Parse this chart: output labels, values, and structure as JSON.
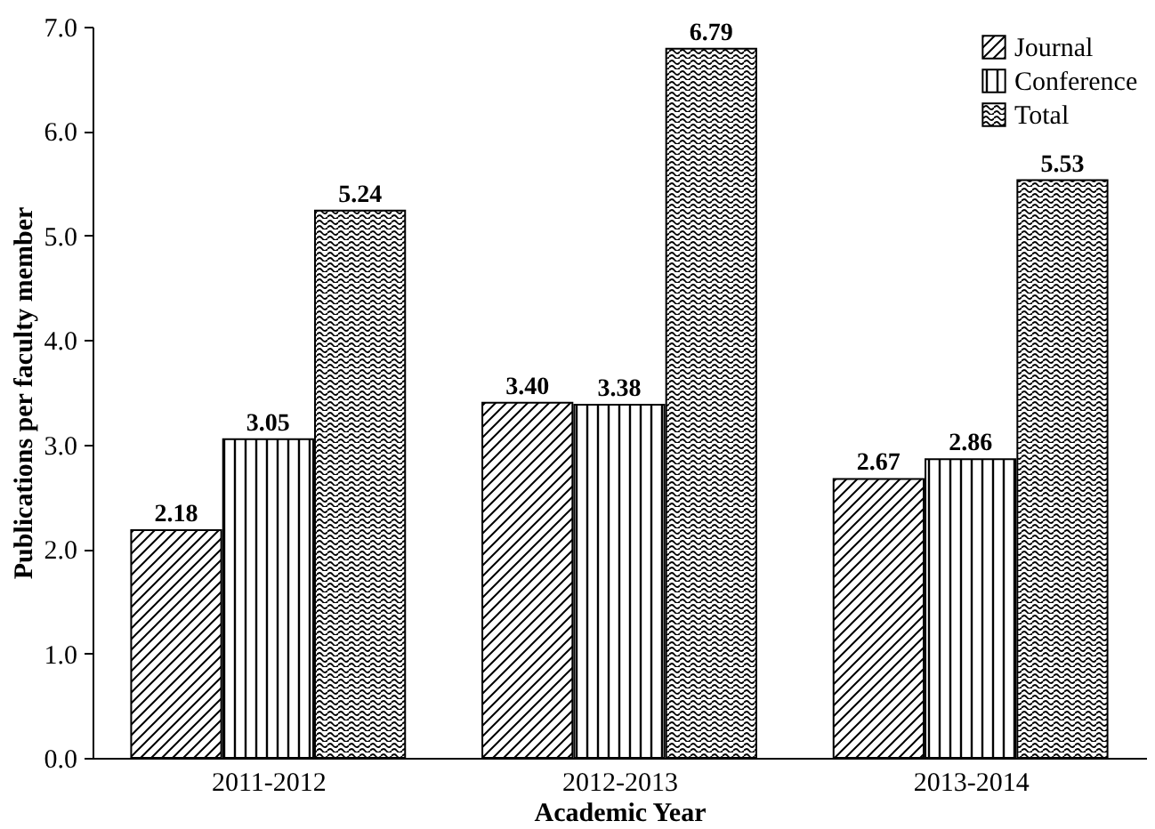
{
  "chart_data": {
    "type": "bar",
    "xlabel": "Academic Year",
    "ylabel": "Publications per faculty member",
    "categories": [
      "2011-2012",
      "2012-2013",
      "2013-2014"
    ],
    "series": [
      {
        "name": "Journal",
        "color": "#000000",
        "values": [
          2.18,
          3.4,
          2.67
        ],
        "value_labels": [
          "2.18",
          "3.40",
          "2.67"
        ]
      },
      {
        "name": "Conference",
        "color": "#000000",
        "values": [
          3.05,
          3.38,
          2.86
        ],
        "value_labels": [
          "3.05",
          "3.38",
          "2.86"
        ]
      },
      {
        "name": "Total",
        "color": "#000000",
        "values": [
          5.24,
          6.79,
          5.53
        ],
        "value_labels": [
          "5.24",
          "6.79",
          "5.53"
        ]
      }
    ],
    "ylim": [
      0,
      7
    ],
    "yticks": [
      {
        "value": 0,
        "label": "0.0"
      },
      {
        "value": 1,
        "label": "1.0"
      },
      {
        "value": 2,
        "label": "2.0"
      },
      {
        "value": 3,
        "label": "3.0"
      },
      {
        "value": 4,
        "label": "4.0"
      },
      {
        "value": 5,
        "label": "5.0"
      },
      {
        "value": 6,
        "label": "6.0"
      },
      {
        "value": 7,
        "label": "7.0"
      }
    ],
    "grid": false,
    "legend": "top right"
  }
}
